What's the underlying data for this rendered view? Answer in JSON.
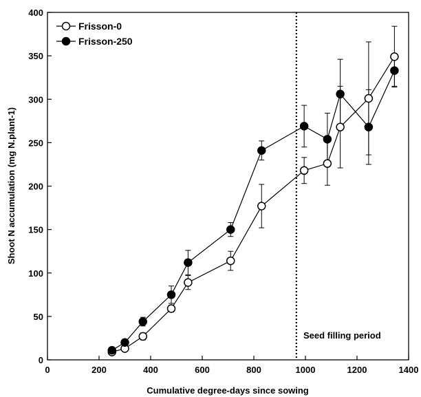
{
  "chart_data": {
    "type": "line",
    "title": "",
    "xlabel": "Cumulative degree-days since sowing",
    "ylabel": "Shoot N accumulation (mg N.plant-1)",
    "xlim": [
      0,
      1400
    ],
    "ylim": [
      0,
      400
    ],
    "xticks": [
      0,
      200,
      400,
      600,
      800,
      1000,
      1200,
      1400
    ],
    "yticks": [
      0,
      50,
      100,
      150,
      200,
      250,
      300,
      350,
      400
    ],
    "grid": false,
    "legend_position": "top-left",
    "series": [
      {
        "name": "Frisson-0",
        "marker": "open-circle",
        "x": [
          250,
          300,
          370,
          480,
          545,
          710,
          830,
          995,
          1085,
          1135,
          1245,
          1345
        ],
        "y": [
          9,
          13,
          27,
          59,
          89,
          114,
          177,
          218,
          226,
          268,
          301,
          349
        ],
        "err": [
          3,
          3,
          4,
          4,
          8,
          11,
          25,
          15,
          25,
          47,
          65,
          35
        ]
      },
      {
        "name": "Frisson-250",
        "marker": "filled-circle",
        "x": [
          250,
          300,
          370,
          480,
          545,
          710,
          830,
          995,
          1085,
          1135,
          1245,
          1345
        ],
        "y": [
          11,
          20,
          44,
          75,
          112,
          150,
          241,
          269,
          254,
          306,
          268,
          333
        ],
        "err": [
          3,
          3,
          5,
          10,
          14,
          8,
          11,
          24,
          30,
          40,
          43,
          18
        ]
      }
    ],
    "reference_line": {
      "x": 965,
      "style": "dotted"
    },
    "annotation": {
      "text": "Seed filling period",
      "position": "bottom-right"
    }
  }
}
